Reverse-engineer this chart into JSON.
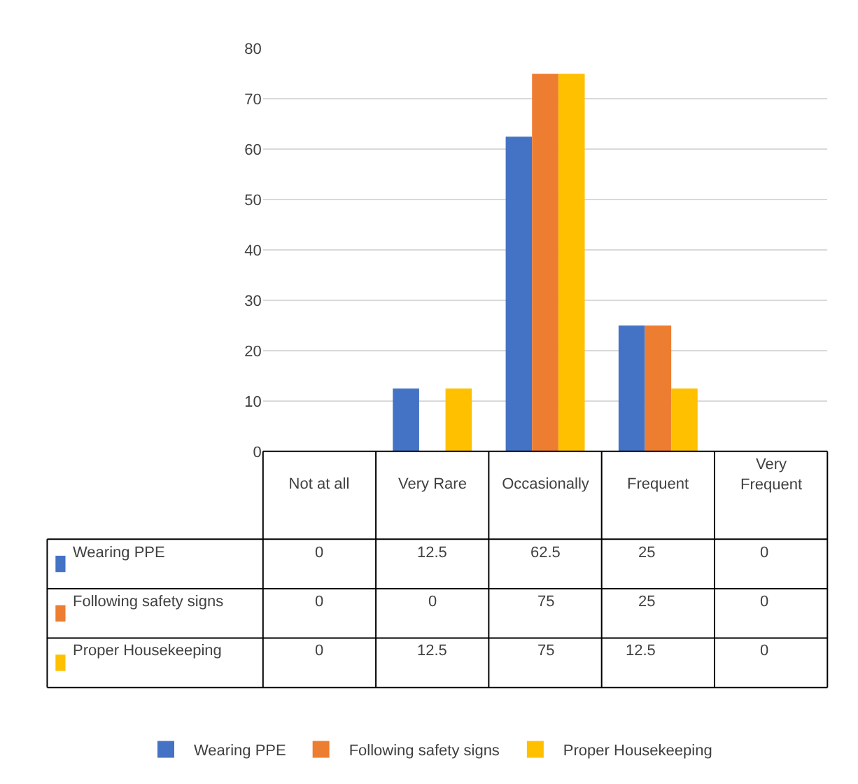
{
  "chart_data": {
    "type": "bar",
    "categories": [
      "Not at all",
      "Very Rare",
      "Occasionally",
      "Frequent",
      "Very Frequent"
    ],
    "series": [
      {
        "name": "Wearing PPE",
        "color": "#4472c4",
        "values": [
          0,
          12.5,
          62.5,
          25,
          0
        ]
      },
      {
        "name": "Following safety signs",
        "color": "#ed7d31",
        "values": [
          0,
          0,
          75,
          25,
          0
        ]
      },
      {
        "name": "Proper Housekeeping",
        "color": "#ffc000",
        "values": [
          0,
          12.5,
          75,
          12.5,
          0
        ]
      }
    ],
    "ylim": [
      0,
      80
    ],
    "yticks": [
      0,
      10,
      20,
      30,
      40,
      50,
      60,
      70,
      80
    ],
    "grid": "y",
    "legend": "bottom",
    "data_labels": true
  }
}
